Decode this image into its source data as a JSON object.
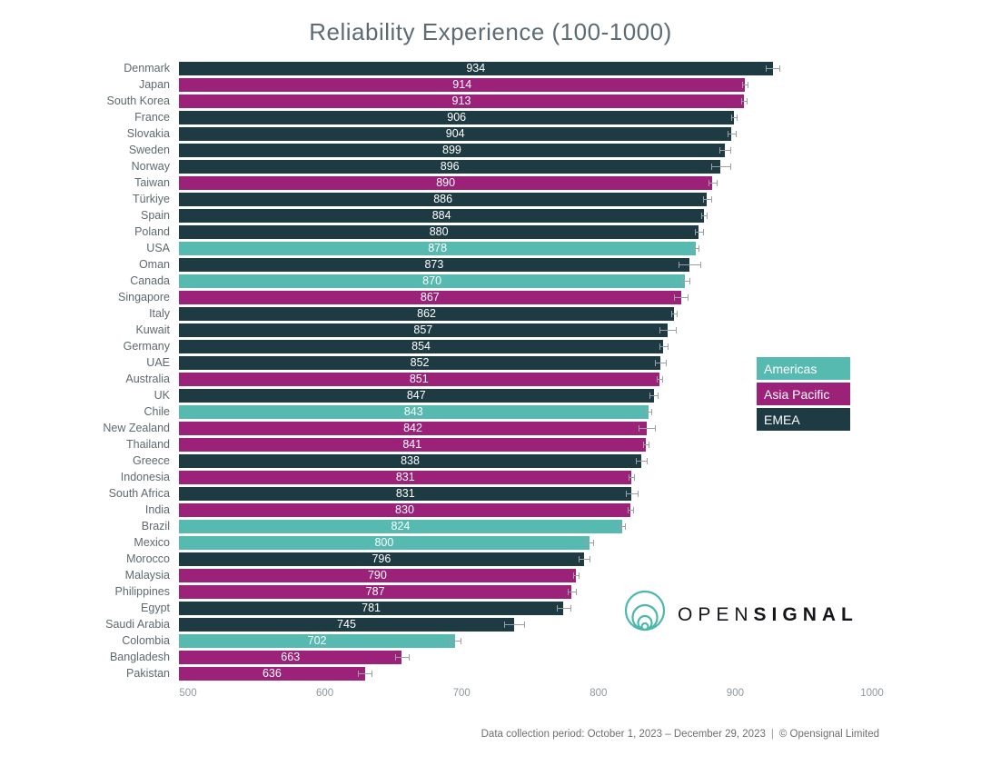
{
  "title": "Reliability Experience (100-1000)",
  "footer": {
    "period": "Data collection period: October 1, 2023 – December 29, 2023",
    "separator": "|",
    "copyright": "© Opensignal Limited"
  },
  "logo": {
    "text_regular": "OPEN",
    "text_bold": "SIGNAL",
    "icon": "opensignal-nested-circles-icon",
    "icon_color": "#4cb8ab"
  },
  "legend": {
    "position": "right-middle",
    "items": [
      {
        "label": "Americas",
        "color": "#57bab0"
      },
      {
        "label": "Asia Pacific",
        "color": "#9b2179"
      },
      {
        "label": "EMEA",
        "color": "#1e3b44"
      }
    ]
  },
  "region_colors": {
    "Americas": "#57bab0",
    "Asia Pacific": "#9b2179",
    "EMEA": "#1e3b44"
  },
  "chart_data": {
    "type": "bar",
    "orientation": "horizontal",
    "title": "Reliability Experience (100-1000)",
    "xlabel": "",
    "ylabel": "",
    "xlim": [
      500,
      1000
    ],
    "xticks": [
      500,
      600,
      700,
      800,
      900,
      1000
    ],
    "grid": false,
    "value_labels": "centered-white",
    "error_bars": true,
    "bars": [
      {
        "label": "Denmark",
        "value": 934,
        "region": "EMEA",
        "err": 5
      },
      {
        "label": "Japan",
        "value": 914,
        "region": "Asia Pacific",
        "err": 2
      },
      {
        "label": "South Korea",
        "value": 913,
        "region": "Asia Pacific",
        "err": 2
      },
      {
        "label": "France",
        "value": 906,
        "region": "EMEA",
        "err": 2
      },
      {
        "label": "Slovakia",
        "value": 904,
        "region": "EMEA",
        "err": 3
      },
      {
        "label": "Sweden",
        "value": 899,
        "region": "EMEA",
        "err": 4
      },
      {
        "label": "Norway",
        "value": 896,
        "region": "EMEA",
        "err": 7
      },
      {
        "label": "Taiwan",
        "value": 890,
        "region": "Asia Pacific",
        "err": 3
      },
      {
        "label": "Türkiye",
        "value": 886,
        "region": "EMEA",
        "err": 3
      },
      {
        "label": "Spain",
        "value": 884,
        "region": "EMEA",
        "err": 2
      },
      {
        "label": "Poland",
        "value": 880,
        "region": "EMEA",
        "err": 3
      },
      {
        "label": "USA",
        "value": 878,
        "region": "Americas",
        "err": 2
      },
      {
        "label": "Oman",
        "value": 873,
        "region": "EMEA",
        "err": 8
      },
      {
        "label": "Canada",
        "value": 870,
        "region": "Americas",
        "err": 3
      },
      {
        "label": "Singapore",
        "value": 867,
        "region": "Asia Pacific",
        "err": 5
      },
      {
        "label": "Italy",
        "value": 862,
        "region": "EMEA",
        "err": 2
      },
      {
        "label": "Kuwait",
        "value": 857,
        "region": "EMEA",
        "err": 6
      },
      {
        "label": "Germany",
        "value": 854,
        "region": "EMEA",
        "err": 3
      },
      {
        "label": "UAE",
        "value": 852,
        "region": "EMEA",
        "err": 4
      },
      {
        "label": "Australia",
        "value": 851,
        "region": "Asia Pacific",
        "err": 2
      },
      {
        "label": "UK",
        "value": 847,
        "region": "EMEA",
        "err": 3
      },
      {
        "label": "Chile",
        "value": 843,
        "region": "Americas",
        "err": 2
      },
      {
        "label": "New Zealand",
        "value": 842,
        "region": "Asia Pacific",
        "err": 6
      },
      {
        "label": "Thailand",
        "value": 841,
        "region": "Asia Pacific",
        "err": 2
      },
      {
        "label": "Greece",
        "value": 838,
        "region": "EMEA",
        "err": 4
      },
      {
        "label": "Indonesia",
        "value": 831,
        "region": "Asia Pacific",
        "err": 2
      },
      {
        "label": "South Africa",
        "value": 831,
        "region": "EMEA",
        "err": 4
      },
      {
        "label": "India",
        "value": 830,
        "region": "Asia Pacific",
        "err": 2
      },
      {
        "label": "Brazil",
        "value": 824,
        "region": "Americas",
        "err": 2
      },
      {
        "label": "Mexico",
        "value": 800,
        "region": "Americas",
        "err": 3
      },
      {
        "label": "Morocco",
        "value": 796,
        "region": "EMEA",
        "err": 4
      },
      {
        "label": "Malaysia",
        "value": 790,
        "region": "Asia Pacific",
        "err": 2
      },
      {
        "label": "Philippines",
        "value": 787,
        "region": "Asia Pacific",
        "err": 3
      },
      {
        "label": "Egypt",
        "value": 781,
        "region": "EMEA",
        "err": 5
      },
      {
        "label": "Saudi Arabia",
        "value": 745,
        "region": "EMEA",
        "err": 7
      },
      {
        "label": "Colombia",
        "value": 702,
        "region": "Americas",
        "err": 4
      },
      {
        "label": "Bangladesh",
        "value": 663,
        "region": "Asia Pacific",
        "err": 5
      },
      {
        "label": "Pakistan",
        "value": 636,
        "region": "Asia Pacific",
        "err": 5
      }
    ]
  }
}
